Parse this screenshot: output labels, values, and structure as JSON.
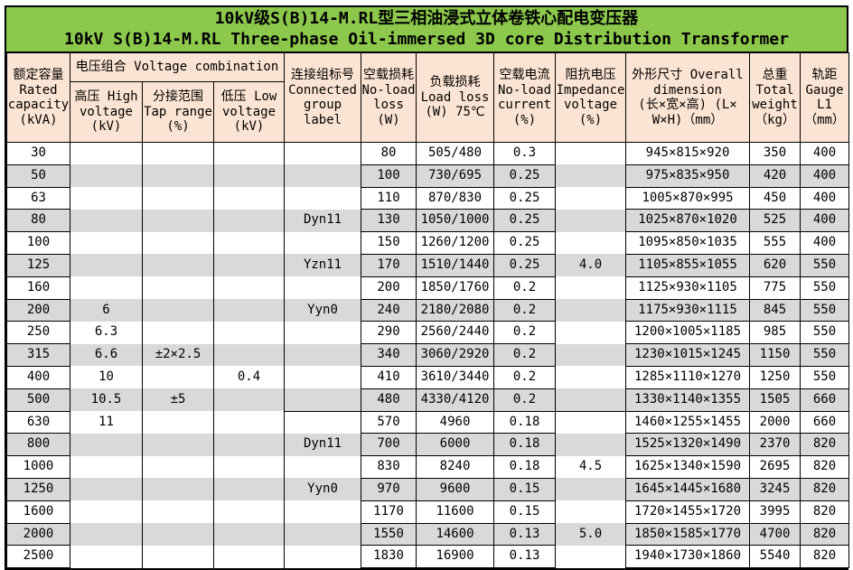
{
  "title": {
    "line1": "10kV级S(B)14-M.RL型三相油浸式立体卷铁心配电变压器",
    "line2": "10kV S(B)14-M.RL Three-phase Oil-immersed 3D core Distribution Transformer"
  },
  "colors": {
    "title_bg": "#8cc84b",
    "header_bg": "#fbe4d3",
    "stripe": "#d9d9d9",
    "border": "#000000"
  },
  "header": {
    "capacity": "额定容量\nRated\ncapacity\n(kVA)",
    "voltage_combination": "电压组合 Voltage combination",
    "high_voltage": "高压 High\nvoltage\n(kV)",
    "tap_range": "分接范围\nTap range\n(%)",
    "low_voltage": "低压 Low\nvoltage\n(kV)",
    "group_label": "连接组标号\nConnected\ngroup\nlabel",
    "no_load_loss": "空载损耗\nNo-load\nloss\n(W)",
    "load_loss": "负载损耗\nLoad loss\n(W) 75℃",
    "no_load_current": "空载电流\nNo-load\ncurrent\n(%)",
    "impedance_voltage": "阻抗电压\nImpedance\nvoltage\n(%)",
    "dimension": "外形尺寸 Overall\ndimension\n(长×宽×高) (L×\nW×H)（mm）",
    "total_weight": "总重\nTotal\nweight\n（kg）",
    "gauge": "轨距\nGauge\nL1\n（mm）"
  },
  "rows": [
    {
      "capacity": "30",
      "hv": "",
      "tap": "",
      "lv": "",
      "group": "",
      "no_load_loss": "80",
      "load_loss": "505/480",
      "current": "0.3",
      "impedance": "",
      "dimension": "945×815×920",
      "weight": "350",
      "gauge": "400"
    },
    {
      "capacity": "50",
      "hv": "",
      "tap": "",
      "lv": "",
      "group": "",
      "no_load_loss": "100",
      "load_loss": "730/695",
      "current": "0.25",
      "impedance": "",
      "dimension": "975×835×950",
      "weight": "420",
      "gauge": "400"
    },
    {
      "capacity": "63",
      "hv": "",
      "tap": "",
      "lv": "",
      "group": "",
      "no_load_loss": "110",
      "load_loss": "870/830",
      "current": "0.25",
      "impedance": "",
      "dimension": "1005×870×995",
      "weight": "450",
      "gauge": "400"
    },
    {
      "capacity": "80",
      "hv": "",
      "tap": "",
      "lv": "",
      "group": "Dyn11",
      "no_load_loss": "130",
      "load_loss": "1050/1000",
      "current": "0.25",
      "impedance": "",
      "dimension": "1025×870×1020",
      "weight": "525",
      "gauge": "400"
    },
    {
      "capacity": "100",
      "hv": "",
      "tap": "",
      "lv": "",
      "group": "",
      "no_load_loss": "150",
      "load_loss": "1260/1200",
      "current": "0.25",
      "impedance": "",
      "dimension": "1095×850×1035",
      "weight": "555",
      "gauge": "400"
    },
    {
      "capacity": "125",
      "hv": "",
      "tap": "",
      "lv": "",
      "group": "Yzn11",
      "no_load_loss": "170",
      "load_loss": "1510/1440",
      "current": "0.25",
      "impedance": "4.0",
      "dimension": "1105×855×1055",
      "weight": "620",
      "gauge": "550"
    },
    {
      "capacity": "160",
      "hv": "",
      "tap": "",
      "lv": "",
      "group": "",
      "no_load_loss": "200",
      "load_loss": "1850/1760",
      "current": "0.2",
      "impedance": "",
      "dimension": "1125×930×1105",
      "weight": "775",
      "gauge": "550"
    },
    {
      "capacity": "200",
      "hv": "6",
      "tap": "",
      "lv": "",
      "group": "Yyn0",
      "no_load_loss": "240",
      "load_loss": "2180/2080",
      "current": "0.2",
      "impedance": "",
      "dimension": "1175×930×1115",
      "weight": "845",
      "gauge": "550"
    },
    {
      "capacity": "250",
      "hv": "6.3",
      "tap": "",
      "lv": "",
      "group": "",
      "no_load_loss": "290",
      "load_loss": "2560/2440",
      "current": "0.2",
      "impedance": "",
      "dimension": "1200×1005×1185",
      "weight": "985",
      "gauge": "550"
    },
    {
      "capacity": "315",
      "hv": "6.6",
      "tap": "±2×2.5",
      "lv": "",
      "group": "",
      "no_load_loss": "340",
      "load_loss": "3060/2920",
      "current": "0.2",
      "impedance": "",
      "dimension": "1230×1015×1245",
      "weight": "1150",
      "gauge": "550"
    },
    {
      "capacity": "400",
      "hv": "10",
      "tap": "",
      "lv": "0.4",
      "group": "",
      "no_load_loss": "410",
      "load_loss": "3610/3440",
      "current": "0.2",
      "impedance": "",
      "dimension": "1285×1110×1270",
      "weight": "1250",
      "gauge": "550"
    },
    {
      "capacity": "500",
      "hv": "10.5",
      "tap": "±5",
      "lv": "",
      "group": "",
      "no_load_loss": "480",
      "load_loss": "4330/4120",
      "current": "0.2",
      "impedance": "",
      "dimension": "1330×1140×1355",
      "weight": "1505",
      "gauge": "660"
    },
    {
      "capacity": "630",
      "hv": "11",
      "tap": "",
      "lv": "",
      "group": "",
      "no_load_loss": "570",
      "load_loss": "4960",
      "current": "0.18",
      "impedance": "",
      "dimension": "1460×1255×1455",
      "weight": "2000",
      "gauge": "660"
    },
    {
      "capacity": "800",
      "hv": "",
      "tap": "",
      "lv": "",
      "group": "Dyn11",
      "no_load_loss": "700",
      "load_loss": "6000",
      "current": "0.18",
      "impedance": "",
      "dimension": "1525×1320×1490",
      "weight": "2370",
      "gauge": "820"
    },
    {
      "capacity": "1000",
      "hv": "",
      "tap": "",
      "lv": "",
      "group": "",
      "no_load_loss": "830",
      "load_loss": "8240",
      "current": "0.18",
      "impedance": "4.5",
      "dimension": "1625×1340×1590",
      "weight": "2695",
      "gauge": "820"
    },
    {
      "capacity": "1250",
      "hv": "",
      "tap": "",
      "lv": "",
      "group": "Yyn0",
      "no_load_loss": "970",
      "load_loss": "9600",
      "current": "0.15",
      "impedance": "",
      "dimension": "1645×1445×1680",
      "weight": "3245",
      "gauge": "820"
    },
    {
      "capacity": "1600",
      "hv": "",
      "tap": "",
      "lv": "",
      "group": "",
      "no_load_loss": "1170",
      "load_loss": "11600",
      "current": "0.15",
      "impedance": "",
      "dimension": "1720×1455×1720",
      "weight": "3995",
      "gauge": "820"
    },
    {
      "capacity": "2000",
      "hv": "",
      "tap": "",
      "lv": "",
      "group": "",
      "no_load_loss": "1550",
      "load_loss": "14600",
      "current": "0.13",
      "impedance": "5.0",
      "dimension": "1850×1585×1770",
      "weight": "4700",
      "gauge": "820"
    },
    {
      "capacity": "2500",
      "hv": "",
      "tap": "",
      "lv": "",
      "group": "",
      "no_load_loss": "1830",
      "load_loss": "16900",
      "current": "0.13",
      "impedance": "",
      "dimension": "1940×1730×1860",
      "weight": "5540",
      "gauge": "820"
    }
  ]
}
